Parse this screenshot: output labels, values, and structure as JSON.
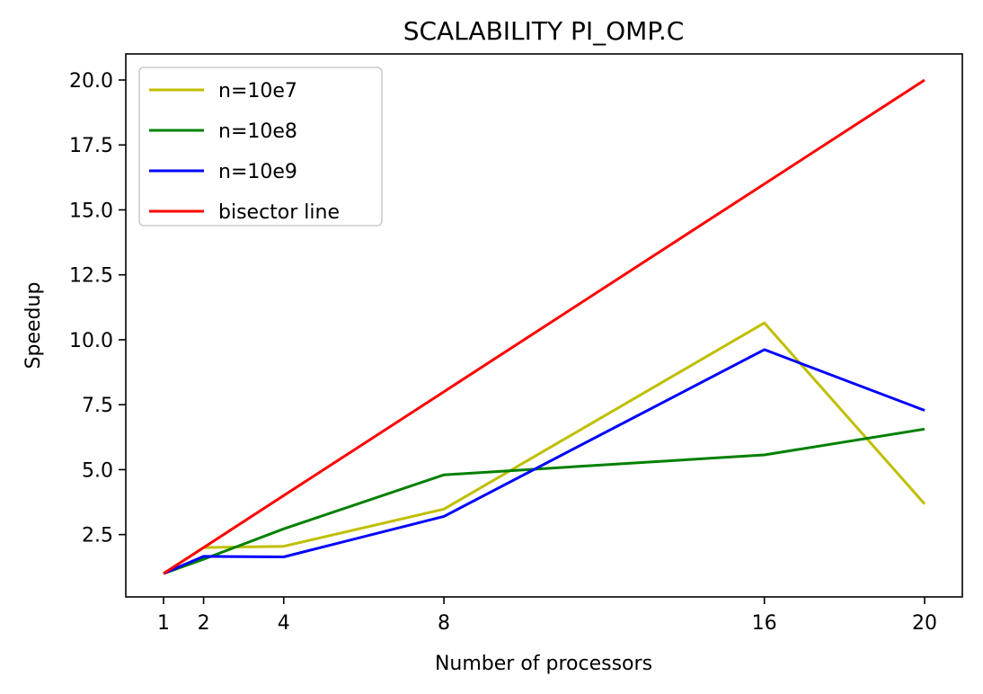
{
  "chart_data": {
    "type": "line",
    "title": "SCALABILITY PI_OMP.C",
    "xlabel": "Number of processors",
    "ylabel": "Speedup",
    "x": [
      1,
      2,
      4,
      8,
      16,
      20
    ],
    "xticks": [
      1,
      2,
      4,
      8,
      16,
      20
    ],
    "yticks": [
      2.5,
      5.0,
      7.5,
      10.0,
      12.5,
      15.0,
      17.5,
      20.0
    ],
    "xlim": [
      0,
      21
    ],
    "ylim": [
      0.0,
      21.0
    ],
    "grid": false,
    "legend_position": "top-left",
    "series": [
      {
        "name": "n=10e7",
        "color": "#bfbf00",
        "values": [
          1.0,
          2.0,
          2.05,
          3.48,
          10.65,
          3.68
        ]
      },
      {
        "name": "n=10e8",
        "color": "#008000",
        "values": [
          1.0,
          1.55,
          2.72,
          4.8,
          5.57,
          6.56
        ]
      },
      {
        "name": "n=10e9",
        "color": "#0000ff",
        "values": [
          1.0,
          1.66,
          1.64,
          3.2,
          9.62,
          7.28
        ]
      },
      {
        "name": "bisector line",
        "color": "#ff0000",
        "values": [
          1.0,
          2.0,
          4.0,
          8.0,
          16.0,
          20.0
        ]
      }
    ]
  }
}
